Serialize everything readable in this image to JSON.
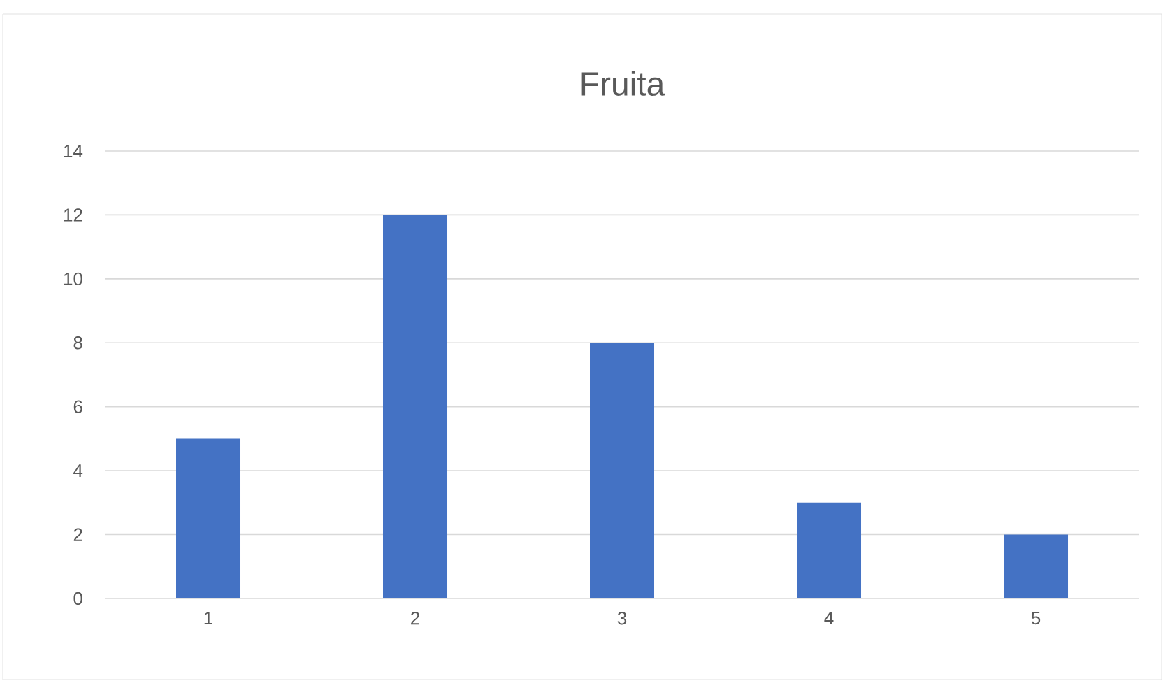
{
  "chart_data": {
    "type": "bar",
    "title": "Fruita",
    "categories": [
      "1",
      "2",
      "3",
      "4",
      "5"
    ],
    "values": [
      5,
      12,
      8,
      3,
      2
    ],
    "color": "#4472c4",
    "ylim": [
      0,
      14
    ],
    "yticks": [
      0,
      2,
      4,
      6,
      8,
      10,
      12,
      14
    ],
    "grid": "y"
  }
}
